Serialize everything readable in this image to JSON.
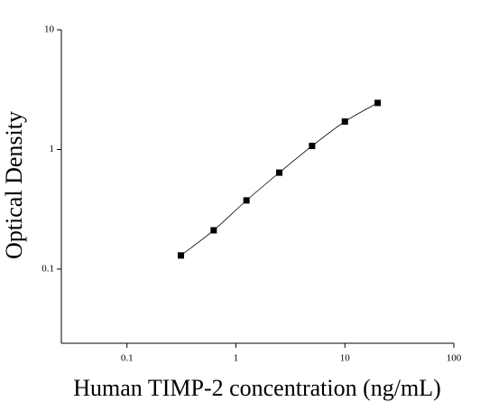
{
  "chart_data": {
    "type": "scatter",
    "x_label": "Human TIMP-2 concentration (ng/mL)",
    "y_label": "Optical Density",
    "xscale": "log",
    "yscale": "log",
    "xlim": [
      0.025,
      100
    ],
    "ylim": [
      0.024,
      10
    ],
    "xticks": [
      0.1,
      1,
      10,
      100
    ],
    "yticks": [
      0.1,
      1,
      10
    ],
    "grid": false,
    "line": true,
    "series": [
      {
        "color": "#000000",
        "x": [
          0.3125,
          0.625,
          1.25,
          2.5,
          5,
          10,
          20
        ],
        "values": [
          0.13,
          0.211,
          0.375,
          0.64,
          1.07,
          1.71,
          2.45
        ]
      }
    ]
  }
}
